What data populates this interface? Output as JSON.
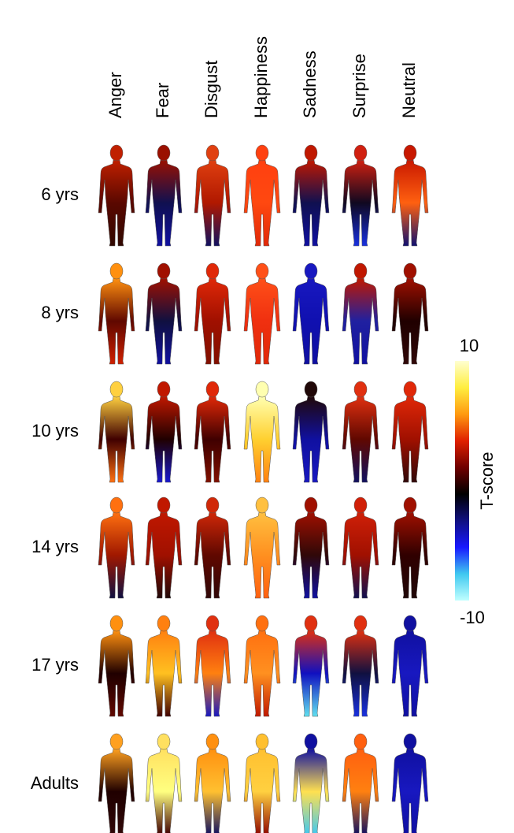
{
  "column_labels": [
    "Anger",
    "Fear",
    "Disgust",
    "Happiness",
    "Sadness",
    "Surprise",
    "Neutral"
  ],
  "row_labels": [
    "6 yrs",
    "8 yrs",
    "10 yrs",
    "14 yrs",
    "17 yrs",
    "Adults"
  ],
  "colorbar": {
    "max": 10,
    "min": -10,
    "label": "T-score",
    "colors": [
      "#ffffd0",
      "#ffee40",
      "#ff9a10",
      "#e02000",
      "#700000",
      "#000000",
      "#101080",
      "#1818ff",
      "#40c8f0",
      "#c0ffff"
    ]
  },
  "cell_colors": [
    [
      [
        "#c02000",
        "#5a0800",
        "#300800"
      ],
      [
        "#9a1000",
        "#101050",
        "#1010a0"
      ],
      [
        "#e04010",
        "#b01800",
        "#101060"
      ],
      [
        "#ff4010",
        "#ff4810",
        "#e02808"
      ],
      [
        "#c01800",
        "#101050",
        "#1010a0"
      ],
      [
        "#d02010",
        "#100820",
        "#1830e0"
      ],
      [
        "#c81800",
        "#ff6010",
        "#101070"
      ]
    ],
    [
      [
        "#ff9010",
        "#600800",
        "#d02000"
      ],
      [
        "#a01000",
        "#101040",
        "#1010a0"
      ],
      [
        "#e02808",
        "#a01000",
        "#801000"
      ],
      [
        "#ff5018",
        "#f03010",
        "#e02808"
      ],
      [
        "#1818c0",
        "#1010b0",
        "#1010a0"
      ],
      [
        "#c01800",
        "#2020a0",
        "#1010a0"
      ],
      [
        "#a01000",
        "#200000",
        "#300808"
      ]
    ],
    [
      [
        "#ffd040",
        "#400000",
        "#ff7010"
      ],
      [
        "#c01800",
        "#200000",
        "#1818d0"
      ],
      [
        "#e02808",
        "#400000",
        "#801000"
      ],
      [
        "#ffffb0",
        "#ffd030",
        "#ff8010"
      ],
      [
        "#200808",
        "#1010a0",
        "#1818c0"
      ],
      [
        "#e03010",
        "#600800",
        "#101060"
      ],
      [
        "#e02808",
        "#a01000",
        "#300808"
      ]
    ],
    [
      [
        "#ff7010",
        "#a01800",
        "#101040"
      ],
      [
        "#c01800",
        "#a01000",
        "#200808"
      ],
      [
        "#d02808",
        "#600800",
        "#300808"
      ],
      [
        "#ffc040",
        "#ff9020",
        "#ff6010"
      ],
      [
        "#a01000",
        "#300808",
        "#1010a0"
      ],
      [
        "#d02008",
        "#a01000",
        "#101050"
      ],
      [
        "#a01000",
        "#300000",
        "#200808"
      ]
    ],
    [
      [
        "#ff9010",
        "#200000",
        "#600800"
      ],
      [
        "#ff8010",
        "#ffc020",
        "#400000"
      ],
      [
        "#e03010",
        "#ff8010",
        "#1818c0"
      ],
      [
        "#ff7010",
        "#ff9020",
        "#c01800"
      ],
      [
        "#e03010",
        "#1010c0",
        "#60e0f0"
      ],
      [
        "#e03010",
        "#101040",
        "#1830e0"
      ],
      [
        "#1010a0",
        "#1818c0",
        "#1010a0"
      ]
    ],
    [
      [
        "#ffa020",
        "#200000",
        "#300808"
      ],
      [
        "#ffe060",
        "#ffff80",
        "#400000"
      ],
      [
        "#ff9010",
        "#ffc030",
        "#101060"
      ],
      [
        "#ffc030",
        "#ffd040",
        "#900800"
      ],
      [
        "#1010a0",
        "#ffe050",
        "#40c8f0"
      ],
      [
        "#ff6010",
        "#ff8010",
        "#101060"
      ],
      [
        "#1010a0",
        "#1818c0",
        "#1010a0"
      ]
    ]
  ]
}
